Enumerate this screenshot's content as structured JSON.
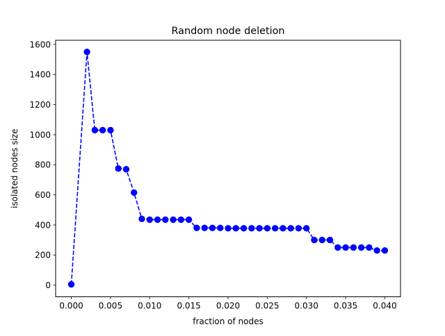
{
  "chart_data": {
    "type": "line",
    "title": "Random node deletion",
    "xlabel": "fraction of nodes",
    "ylabel": "isolated nodes size",
    "xlim": [
      -0.002,
      0.042
    ],
    "ylim": [
      -77.5,
      1627.5
    ],
    "x_ticks": [
      0.0,
      0.005,
      0.01,
      0.015,
      0.02,
      0.025,
      0.03,
      0.035,
      0.04
    ],
    "x_tick_labels": [
      "0.000",
      "0.005",
      "0.010",
      "0.015",
      "0.020",
      "0.025",
      "0.030",
      "0.035",
      "0.040"
    ],
    "y_ticks": [
      0,
      200,
      400,
      600,
      800,
      1000,
      1200,
      1400,
      1600
    ],
    "y_tick_labels": [
      "0",
      "200",
      "400",
      "600",
      "800",
      "1000",
      "1200",
      "1400",
      "1600"
    ],
    "grid": false,
    "series": [
      {
        "color": "#0000ff",
        "line_style": "dashed",
        "marker": "circle",
        "x": [
          0.0,
          0.002,
          0.003,
          0.004,
          0.005,
          0.006,
          0.007,
          0.008,
          0.009,
          0.01,
          0.011,
          0.012,
          0.013,
          0.014,
          0.015,
          0.016,
          0.017,
          0.018,
          0.019,
          0.02,
          0.021,
          0.022,
          0.023,
          0.024,
          0.025,
          0.026,
          0.027,
          0.028,
          0.029,
          0.03,
          0.031,
          0.032,
          0.033,
          0.034,
          0.035,
          0.036,
          0.037,
          0.038,
          0.039,
          0.04
        ],
        "y": [
          5,
          1550,
          1030,
          1030,
          1030,
          775,
          770,
          615,
          440,
          435,
          435,
          435,
          435,
          435,
          435,
          380,
          380,
          380,
          380,
          378,
          378,
          378,
          378,
          378,
          378,
          378,
          378,
          378,
          378,
          378,
          300,
          300,
          300,
          250,
          250,
          250,
          250,
          250,
          230,
          230
        ]
      }
    ]
  }
}
